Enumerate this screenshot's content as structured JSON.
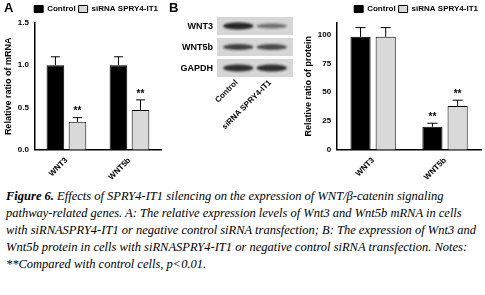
{
  "chart_data": [
    {
      "type": "bar",
      "panel_label": "A",
      "y_label": "Relative ratio of mRNA",
      "categories": [
        "WNT3",
        "WNT5b"
      ],
      "series": [
        {
          "name": "Control",
          "color": "#000000",
          "values": [
            1.0,
            1.0
          ],
          "errors": [
            0.1,
            0.1
          ]
        },
        {
          "name": "siRNA SPRY4-IT1",
          "color": "#d9d9d9",
          "values": [
            0.33,
            0.47
          ],
          "errors": [
            0.05,
            0.12
          ]
        }
      ],
      "annotations": [
        {
          "category": "WNT3",
          "series": "siRNA SPRY4-IT1",
          "text": "**"
        },
        {
          "category": "WNT5b",
          "series": "siRNA SPRY4-IT1",
          "text": "**"
        }
      ],
      "ylim": [
        0,
        1.5
      ],
      "yticks": [
        {
          "value": 0,
          "label": "0.0"
        },
        0.5,
        {
          "value": 1,
          "label": "1.0"
        },
        1.5
      ],
      "grid": false,
      "legend": "top right"
    },
    {
      "type": "bar",
      "y_label": "Relative ratio of protein",
      "categories": [
        "WNT3",
        "WNT5b"
      ],
      "series": [
        {
          "name": "Control",
          "color": "#000000",
          "values": [
            98,
            20
          ],
          "errors": [
            8,
            3
          ]
        },
        {
          "name": "siRNA SPRY4-IT1",
          "color": "#d9d9d9",
          "values": [
            98,
            38
          ],
          "errors": [
            8,
            5
          ]
        }
      ],
      "annotations": [
        {
          "category": "WNT5b",
          "series": "Control",
          "text": "**"
        },
        {
          "category": "WNT5b",
          "series": "siRNA SPRY4-IT1",
          "text": "**"
        }
      ],
      "ylim": [
        0,
        110
      ],
      "yticks": [
        0,
        25,
        50,
        75,
        100
      ],
      "grid": false,
      "legend": "top right"
    }
  ],
  "blot": {
    "panel_label": "B",
    "bands": [
      "WNT3",
      "WNT5b",
      "GAPDH"
    ],
    "lanes": [
      "Control",
      "siRNA SPRY4-IT1"
    ]
  },
  "caption": {
    "label": "Figure 6.",
    "text": "Effects of SPRY4-IT1 silencing on the expression of WNT/β-catenin signaling pathway-related genes. A: The relative expression levels of Wnt3 and Wnt5b mRNA in cells with siRNASPRY4-IT1 or negative control siRNA transfection; B: The expression of Wnt3 and Wnt5b protein in cells with siRNASPRY4-IT1 or negative control siRNA transfection. Notes: **Compared with control cells, p<0.01."
  }
}
